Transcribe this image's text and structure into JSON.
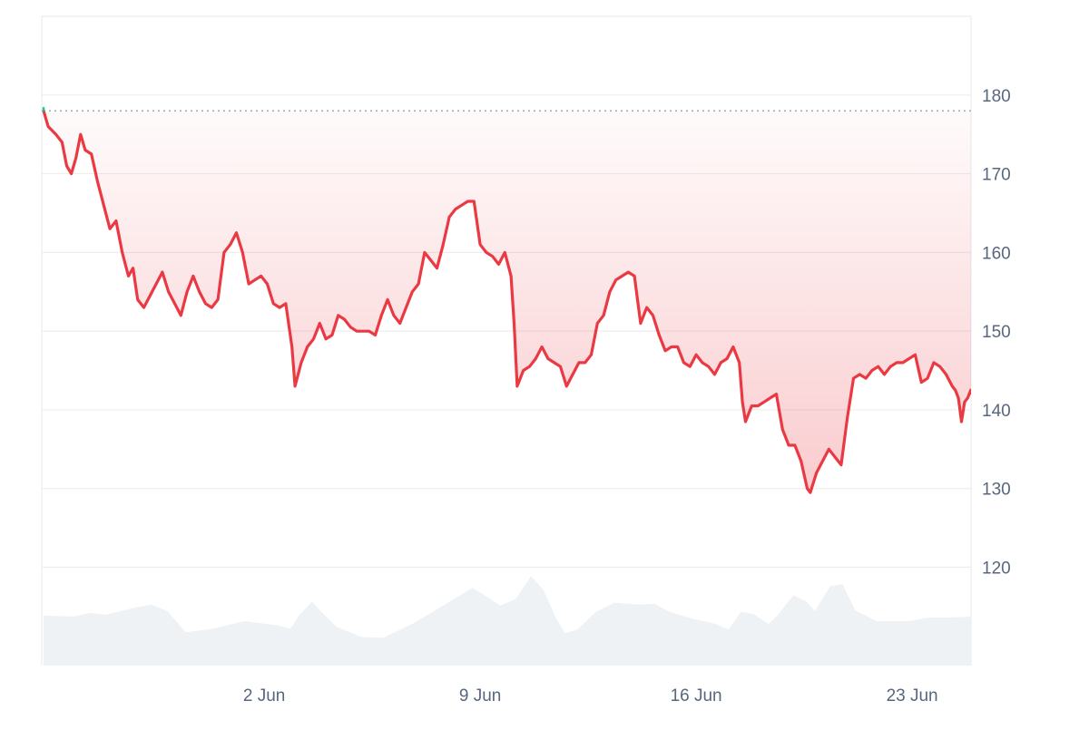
{
  "chart_data": {
    "type": "line",
    "x_unit": "days",
    "x_range": [
      0,
      30
    ],
    "ylim": [
      107.5,
      190
    ],
    "yticks": [
      120,
      130,
      140,
      150,
      160,
      170,
      180
    ],
    "xticks": [
      {
        "label": "2 Jun",
        "x": 7.15
      },
      {
        "label": "9 Jun",
        "x": 14.15
      },
      {
        "label": "16 Jun",
        "x": 21.15
      },
      {
        "label": "23 Jun",
        "x": 28.15
      }
    ],
    "reference_line": 178,
    "grid": true,
    "colors": {
      "line": "#ea3943",
      "start_marker": "#16c784",
      "reference": "#9aa0a6",
      "volume": "#eff2f5",
      "grid": "#eeeeee",
      "tick_text": "#58667e",
      "frame": "#e6e8ec"
    },
    "series": [
      {
        "values": [
          [
            0.0,
            178
          ],
          [
            0.15,
            176
          ],
          [
            0.4,
            175
          ],
          [
            0.6,
            174
          ],
          [
            0.75,
            171
          ],
          [
            0.9,
            170
          ],
          [
            1.05,
            172
          ],
          [
            1.2,
            175
          ],
          [
            1.35,
            173
          ],
          [
            1.55,
            172.5
          ],
          [
            1.75,
            169
          ],
          [
            1.95,
            166
          ],
          [
            2.15,
            163
          ],
          [
            2.35,
            164
          ],
          [
            2.55,
            160
          ],
          [
            2.75,
            157
          ],
          [
            2.9,
            158
          ],
          [
            3.05,
            154
          ],
          [
            3.25,
            153
          ],
          [
            3.45,
            154.5
          ],
          [
            3.65,
            156
          ],
          [
            3.85,
            157.5
          ],
          [
            4.05,
            155
          ],
          [
            4.25,
            153.5
          ],
          [
            4.45,
            152
          ],
          [
            4.65,
            155
          ],
          [
            4.85,
            157
          ],
          [
            5.05,
            155
          ],
          [
            5.25,
            153.5
          ],
          [
            5.45,
            153
          ],
          [
            5.65,
            154
          ],
          [
            5.85,
            160
          ],
          [
            6.05,
            161
          ],
          [
            6.25,
            162.5
          ],
          [
            6.45,
            160
          ],
          [
            6.65,
            156
          ],
          [
            6.85,
            156.5
          ],
          [
            7.05,
            157
          ],
          [
            7.25,
            156
          ],
          [
            7.45,
            153.5
          ],
          [
            7.65,
            153
          ],
          [
            7.85,
            153.5
          ],
          [
            8.05,
            148
          ],
          [
            8.15,
            143
          ],
          [
            8.35,
            146
          ],
          [
            8.55,
            148
          ],
          [
            8.75,
            149
          ],
          [
            8.95,
            151
          ],
          [
            9.15,
            149
          ],
          [
            9.35,
            149.5
          ],
          [
            9.55,
            152
          ],
          [
            9.75,
            151.5
          ],
          [
            9.95,
            150.5
          ],
          [
            10.15,
            150
          ],
          [
            10.35,
            150
          ],
          [
            10.55,
            150
          ],
          [
            10.75,
            149.5
          ],
          [
            10.95,
            152
          ],
          [
            11.15,
            154
          ],
          [
            11.35,
            152
          ],
          [
            11.55,
            151
          ],
          [
            11.75,
            153
          ],
          [
            11.95,
            155
          ],
          [
            12.15,
            156
          ],
          [
            12.35,
            160
          ],
          [
            12.55,
            159
          ],
          [
            12.75,
            158
          ],
          [
            12.95,
            161
          ],
          [
            13.15,
            164.5
          ],
          [
            13.35,
            165.5
          ],
          [
            13.55,
            166
          ],
          [
            13.75,
            166.5
          ],
          [
            13.95,
            166.5
          ],
          [
            14.15,
            161
          ],
          [
            14.35,
            160
          ],
          [
            14.55,
            159.5
          ],
          [
            14.75,
            158.5
          ],
          [
            14.95,
            160
          ],
          [
            15.15,
            157
          ],
          [
            15.25,
            151
          ],
          [
            15.35,
            143
          ],
          [
            15.55,
            145
          ],
          [
            15.75,
            145.5
          ],
          [
            15.95,
            146.5
          ],
          [
            16.15,
            148
          ],
          [
            16.35,
            146.5
          ],
          [
            16.55,
            146
          ],
          [
            16.75,
            145.5
          ],
          [
            16.95,
            143
          ],
          [
            17.15,
            144.5
          ],
          [
            17.35,
            146
          ],
          [
            17.55,
            146
          ],
          [
            17.75,
            147
          ],
          [
            17.95,
            151
          ],
          [
            18.15,
            152
          ],
          [
            18.35,
            155
          ],
          [
            18.55,
            156.5
          ],
          [
            18.75,
            157
          ],
          [
            18.95,
            157.5
          ],
          [
            19.15,
            157
          ],
          [
            19.35,
            151
          ],
          [
            19.55,
            153
          ],
          [
            19.75,
            152
          ],
          [
            19.95,
            149.5
          ],
          [
            20.15,
            147.5
          ],
          [
            20.35,
            148
          ],
          [
            20.55,
            148
          ],
          [
            20.75,
            146
          ],
          [
            20.95,
            145.5
          ],
          [
            21.15,
            147
          ],
          [
            21.35,
            146
          ],
          [
            21.55,
            145.5
          ],
          [
            21.75,
            144.5
          ],
          [
            21.95,
            146
          ],
          [
            22.15,
            146.5
          ],
          [
            22.35,
            148
          ],
          [
            22.55,
            146
          ],
          [
            22.65,
            141
          ],
          [
            22.75,
            138.5
          ],
          [
            22.95,
            140.5
          ],
          [
            23.15,
            140.5
          ],
          [
            23.35,
            141
          ],
          [
            23.55,
            141.5
          ],
          [
            23.75,
            142
          ],
          [
            23.95,
            137.5
          ],
          [
            24.15,
            135.5
          ],
          [
            24.35,
            135.5
          ],
          [
            24.55,
            133.5
          ],
          [
            24.75,
            130
          ],
          [
            24.85,
            129.5
          ],
          [
            25.05,
            132
          ],
          [
            25.25,
            133.5
          ],
          [
            25.45,
            135
          ],
          [
            25.65,
            134
          ],
          [
            25.85,
            133
          ],
          [
            26.05,
            139
          ],
          [
            26.25,
            144
          ],
          [
            26.45,
            144.5
          ],
          [
            26.65,
            144
          ],
          [
            26.85,
            145
          ],
          [
            27.05,
            145.5
          ],
          [
            27.25,
            144.5
          ],
          [
            27.45,
            145.5
          ],
          [
            27.65,
            146
          ],
          [
            27.85,
            146
          ],
          [
            28.05,
            146.5
          ],
          [
            28.25,
            147
          ],
          [
            28.45,
            143.5
          ],
          [
            28.65,
            144
          ],
          [
            28.85,
            146
          ],
          [
            29.05,
            145.5
          ],
          [
            29.25,
            144.5
          ],
          [
            29.45,
            143
          ],
          [
            29.55,
            142.5
          ],
          [
            29.65,
            141.5
          ],
          [
            29.75,
            138.5
          ],
          [
            29.85,
            141
          ],
          [
            29.95,
            141.5
          ],
          [
            30.05,
            142.5
          ],
          [
            30.2,
            141
          ],
          [
            30.35,
            144
          ],
          [
            30.5,
            141
          ],
          [
            30.65,
            143
          ]
        ]
      }
    ],
    "volume": {
      "scale_max": 1,
      "values": [
        [
          0.0,
          0.54
        ],
        [
          1.0,
          0.53
        ],
        [
          1.5,
          0.57
        ],
        [
          2.0,
          0.55
        ],
        [
          3.0,
          0.63
        ],
        [
          3.5,
          0.66
        ],
        [
          4.0,
          0.59
        ],
        [
          4.3,
          0.48
        ],
        [
          4.6,
          0.36
        ],
        [
          5.5,
          0.4
        ],
        [
          6.5,
          0.48
        ],
        [
          7.5,
          0.44
        ],
        [
          8.0,
          0.4
        ],
        [
          8.3,
          0.55
        ],
        [
          8.7,
          0.69
        ],
        [
          9.0,
          0.58
        ],
        [
          9.5,
          0.42
        ],
        [
          10.3,
          0.31
        ],
        [
          11.0,
          0.3
        ],
        [
          12.0,
          0.46
        ],
        [
          13.0,
          0.66
        ],
        [
          13.9,
          0.84
        ],
        [
          14.3,
          0.76
        ],
        [
          14.8,
          0.65
        ],
        [
          15.3,
          0.72
        ],
        [
          15.8,
          0.97
        ],
        [
          16.2,
          0.82
        ],
        [
          16.6,
          0.52
        ],
        [
          16.9,
          0.35
        ],
        [
          17.3,
          0.39
        ],
        [
          17.9,
          0.58
        ],
        [
          18.5,
          0.68
        ],
        [
          19.3,
          0.66
        ],
        [
          19.8,
          0.67
        ],
        [
          20.3,
          0.58
        ],
        [
          21.0,
          0.51
        ],
        [
          21.8,
          0.45
        ],
        [
          22.2,
          0.39
        ],
        [
          22.6,
          0.58
        ],
        [
          23.0,
          0.56
        ],
        [
          23.5,
          0.45
        ],
        [
          23.8,
          0.55
        ],
        [
          24.3,
          0.76
        ],
        [
          24.7,
          0.7
        ],
        [
          25.0,
          0.59
        ],
        [
          25.5,
          0.86
        ],
        [
          25.9,
          0.88
        ],
        [
          26.3,
          0.6
        ],
        [
          27.0,
          0.48
        ],
        [
          28.0,
          0.48
        ],
        [
          28.7,
          0.52
        ],
        [
          29.3,
          0.52
        ],
        [
          30.2,
          0.53
        ],
        [
          30.65,
          0.53
        ]
      ]
    }
  }
}
